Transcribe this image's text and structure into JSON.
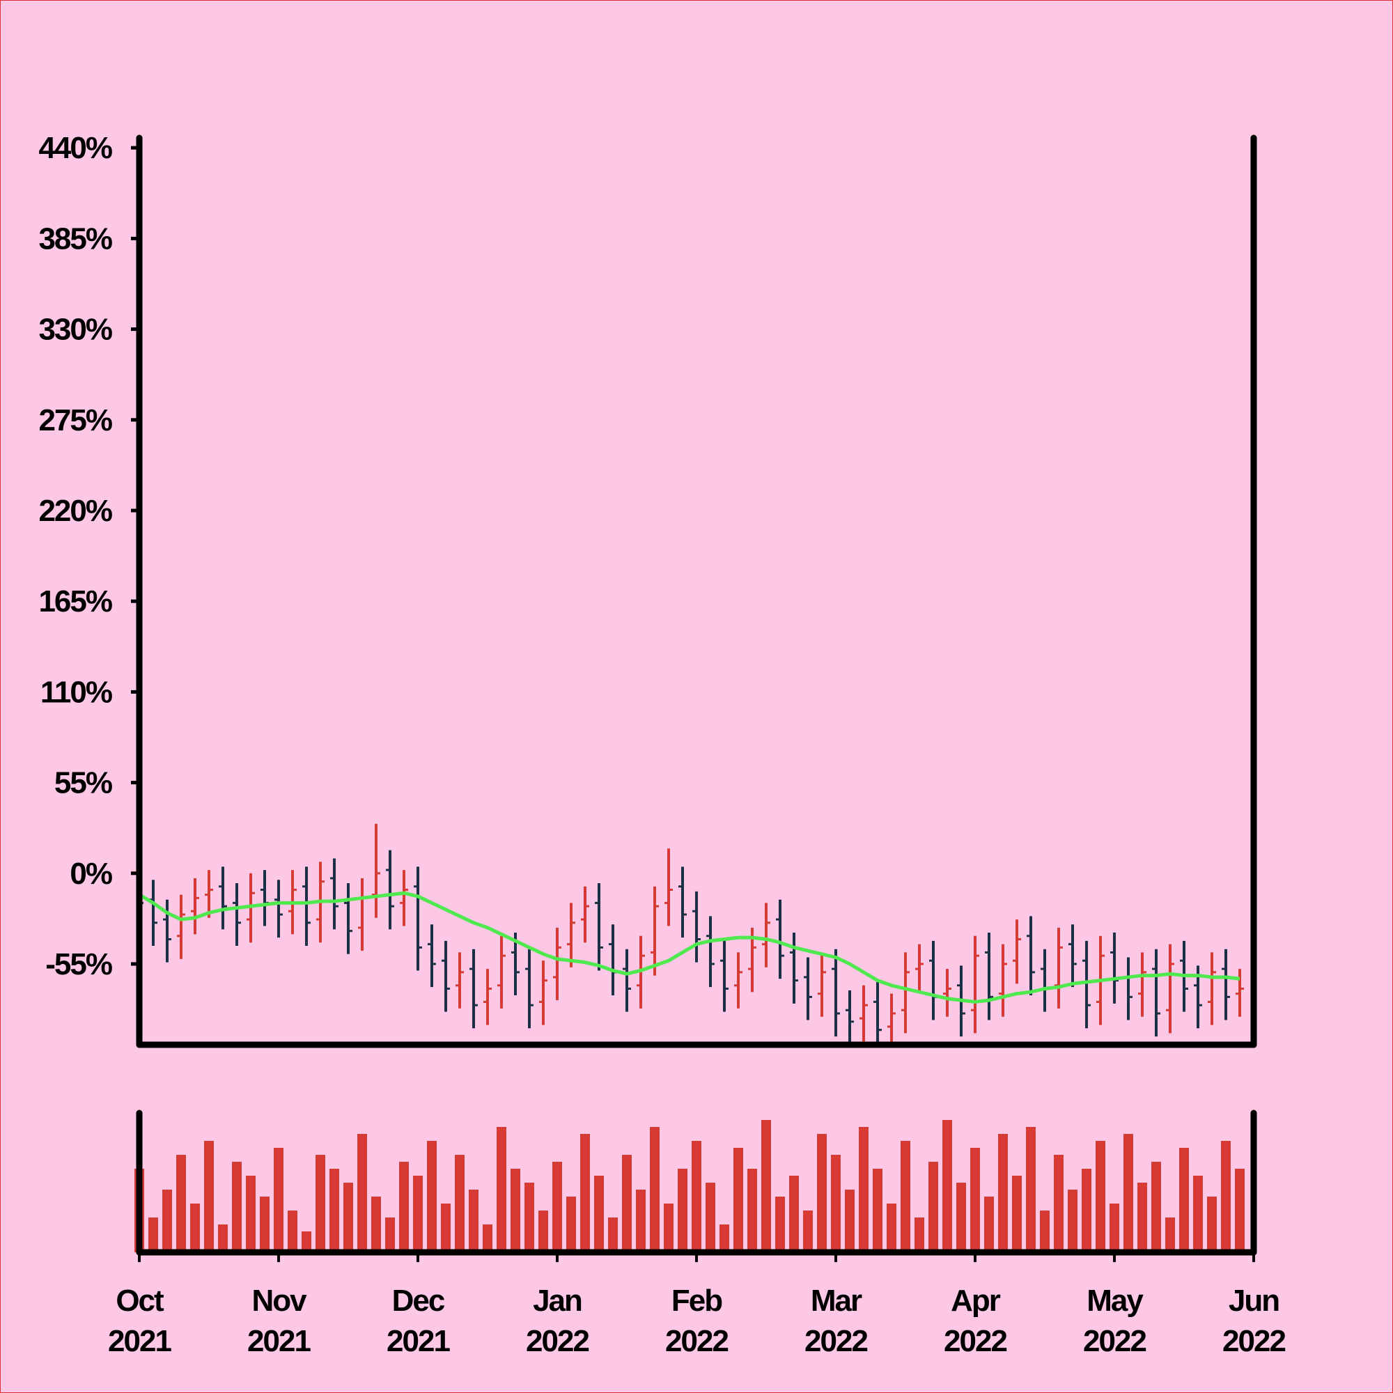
{
  "chart_data": {
    "type": "ohlc",
    "up_color": "#d63a35",
    "down_color": "#1b3046",
    "x": [
      0,
      0.1,
      0.2,
      0.3,
      0.4,
      0.5,
      0.6,
      0.7,
      0.8,
      0.9,
      1,
      1.1,
      1.2,
      1.3,
      1.4,
      1.5,
      1.6,
      1.7,
      1.8,
      1.9,
      2,
      2.1,
      2.2,
      2.3,
      2.4,
      2.5,
      2.6,
      2.7,
      2.8,
      2.9,
      3,
      3.1,
      3.2,
      3.3,
      3.4,
      3.5,
      3.6,
      3.7,
      3.8,
      3.9,
      4,
      4.1,
      4.2,
      4.3,
      4.4,
      4.5,
      4.6,
      4.7,
      4.8,
      4.9,
      5,
      5.1,
      5.2,
      5.3,
      5.4,
      5.5,
      5.6,
      5.7,
      5.8,
      5.9,
      6,
      6.1,
      6.2,
      6.3,
      6.4,
      6.5,
      6.6,
      6.7,
      6.8,
      6.9,
      7,
      7.1,
      7.2,
      7.3,
      7.4,
      7.5,
      7.6,
      7.7,
      7.8,
      7.9
    ],
    "open": [
      -10,
      -16,
      -28,
      -38,
      -23,
      -13,
      -8,
      -18,
      -28,
      -10,
      -16,
      -23,
      -8,
      -28,
      -3,
      -18,
      -33,
      -13,
      2,
      -18,
      -8,
      -43,
      -53,
      -68,
      -58,
      -78,
      -68,
      -48,
      -58,
      -78,
      -63,
      -43,
      -28,
      -18,
      -43,
      -58,
      -68,
      -48,
      -18,
      -8,
      -23,
      -38,
      -53,
      -68,
      -58,
      -43,
      -28,
      -48,
      -63,
      -73,
      -58,
      -83,
      -88,
      -78,
      -93,
      -83,
      -58,
      -53,
      -73,
      -68,
      -83,
      -48,
      -73,
      -53,
      -38,
      -58,
      -68,
      -43,
      -53,
      -78,
      -48,
      -63,
      -73,
      -58,
      -83,
      -53,
      -68,
      -78,
      -58,
      -73
    ],
    "high": [
      2,
      -4,
      -16,
      -13,
      -3,
      2,
      4,
      -6,
      0,
      2,
      -4,
      2,
      4,
      7,
      9,
      -6,
      -3,
      30,
      14,
      2,
      4,
      -31,
      -41,
      -48,
      -46,
      -58,
      -38,
      -36,
      -46,
      -53,
      -33,
      -18,
      -8,
      -6,
      -31,
      -46,
      -38,
      -8,
      15,
      4,
      -11,
      -26,
      -41,
      -48,
      -33,
      -18,
      -16,
      -36,
      -51,
      -48,
      -46,
      -71,
      -68,
      -66,
      -73,
      -48,
      -43,
      -41,
      -58,
      -56,
      -38,
      -36,
      -43,
      -28,
      -26,
      -46,
      -33,
      -31,
      -41,
      -38,
      -36,
      -51,
      -48,
      -46,
      -43,
      -41,
      -56,
      -48,
      -46,
      -58
    ],
    "low": [
      -32,
      -44,
      -54,
      -52,
      -37,
      -27,
      -34,
      -44,
      -42,
      -32,
      -39,
      -37,
      -44,
      -42,
      -34,
      -49,
      -47,
      -27,
      -34,
      -32,
      -59,
      -69,
      -84,
      -82,
      -94,
      -92,
      -82,
      -74,
      -94,
      -92,
      -77,
      -57,
      -42,
      -59,
      -74,
      -84,
      -82,
      -62,
      -32,
      -39,
      -54,
      -69,
      -84,
      -82,
      -72,
      -57,
      -64,
      -79,
      -89,
      -87,
      -99,
      -104,
      -102,
      -109,
      -107,
      -97,
      -72,
      -89,
      -87,
      -99,
      -97,
      -89,
      -87,
      -67,
      -74,
      -84,
      -82,
      -69,
      -94,
      -92,
      -79,
      -89,
      -87,
      -99,
      -97,
      -84,
      -94,
      -92,
      -89,
      -87
    ],
    "close": [
      -18,
      -30,
      -40,
      -25,
      -15,
      -10,
      -20,
      -30,
      -12,
      -18,
      -25,
      -10,
      -30,
      -5,
      -20,
      -35,
      -15,
      0,
      -20,
      -10,
      -45,
      -55,
      -70,
      -60,
      -80,
      -70,
      -50,
      -60,
      -80,
      -65,
      -45,
      -30,
      -20,
      -45,
      -60,
      -70,
      -50,
      -20,
      -10,
      -25,
      -40,
      -55,
      -70,
      -60,
      -45,
      -30,
      -50,
      -65,
      -75,
      -60,
      -85,
      -90,
      -80,
      -95,
      -85,
      -60,
      -55,
      -75,
      -70,
      -85,
      -50,
      -75,
      -55,
      -40,
      -60,
      -70,
      -45,
      -55,
      -80,
      -50,
      -65,
      -75,
      -60,
      -85,
      -55,
      -70,
      -80,
      -60,
      -75,
      -70
    ],
    "ma": {
      "color": "#4fe84f",
      "values": [
        -13,
        -18,
        -24,
        -28,
        -27,
        -24,
        -22,
        -21,
        -20,
        -19,
        -18,
        -18,
        -18,
        -17,
        -17,
        -16,
        -15,
        -14,
        -13,
        -12,
        -14,
        -18,
        -22,
        -26,
        -30,
        -33,
        -37,
        -41,
        -45,
        -49,
        -52,
        -53,
        -54,
        -56,
        -59,
        -61,
        -59,
        -56,
        -53,
        -48,
        -43,
        -41,
        -40,
        -39,
        -39,
        -40,
        -42,
        -45,
        -47,
        -49,
        -51,
        -55,
        -60,
        -65,
        -68,
        -70,
        -72,
        -74,
        -76,
        -77,
        -78,
        -77,
        -75,
        -73,
        -72,
        -70,
        -69,
        -67,
        -66,
        -65,
        -64,
        -63,
        -62,
        -62,
        -61,
        -62,
        -62,
        -63,
        -63,
        -64
      ]
    },
    "volume": {
      "color": "#d63a35",
      "ylim": [
        0,
        100
      ],
      "values": [
        60,
        25,
        45,
        70,
        35,
        80,
        20,
        65,
        55,
        40,
        75,
        30,
        15,
        70,
        60,
        50,
        85,
        40,
        25,
        65,
        55,
        80,
        35,
        70,
        45,
        20,
        90,
        60,
        50,
        30,
        65,
        40,
        85,
        55,
        25,
        70,
        45,
        90,
        35,
        60,
        80,
        50,
        20,
        75,
        60,
        95,
        40,
        55,
        30,
        85,
        70,
        45,
        90,
        60,
        35,
        80,
        25,
        65,
        95,
        50,
        75,
        40,
        85,
        55,
        90,
        30,
        70,
        45,
        60,
        80,
        35,
        85,
        50,
        65,
        25,
        75,
        55,
        40,
        80,
        60
      ]
    },
    "xlim": [
      0,
      8
    ],
    "xticks": [
      {
        "value": 0,
        "label": [
          "Oct",
          "2021"
        ]
      },
      {
        "value": 1,
        "label": [
          "Nov",
          "2021"
        ]
      },
      {
        "value": 2,
        "label": [
          "Dec",
          "2021"
        ]
      },
      {
        "value": 3,
        "label": [
          "Jan",
          "2022"
        ]
      },
      {
        "value": 4,
        "label": [
          "Feb",
          "2022"
        ]
      },
      {
        "value": 5,
        "label": [
          "Mar",
          "2022"
        ]
      },
      {
        "value": 6,
        "label": [
          "Apr",
          "2022"
        ]
      },
      {
        "value": 7,
        "label": [
          "May",
          "2022"
        ]
      },
      {
        "value": 8,
        "label": [
          "Jun",
          "2022"
        ]
      }
    ],
    "ylim": [
      -104,
      446
    ],
    "yticks": [
      {
        "value": 440,
        "label": "440%"
      },
      {
        "value": 385,
        "label": "385%"
      },
      {
        "value": 330,
        "label": "330%"
      },
      {
        "value": 275,
        "label": "275%"
      },
      {
        "value": 220,
        "label": "220%"
      },
      {
        "value": 165,
        "label": "165%"
      },
      {
        "value": 110,
        "label": "110%"
      },
      {
        "value": 55,
        "label": "55%"
      },
      {
        "value": 0,
        "label": "0%"
      },
      {
        "value": -55,
        "label": "-55%"
      }
    ]
  }
}
